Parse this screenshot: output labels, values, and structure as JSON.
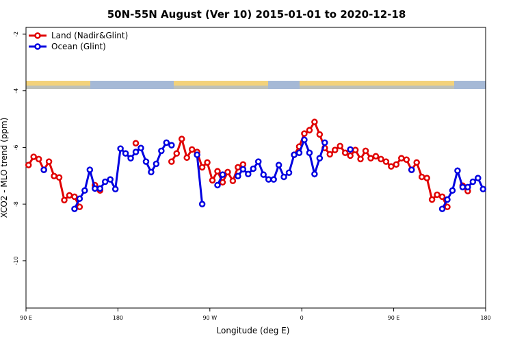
{
  "chart_data": {
    "type": "line",
    "title": "50N-55N August (Ver 10)   2015-01-01 to 2020-12-18",
    "x_label": "Longitude (deg E)",
    "y_label": "XCO2 - MLO trend (ppm)",
    "xlim": [
      90,
      540
    ],
    "xticks": [
      {
        "value": 90,
        "label": "90 E"
      },
      180,
      {
        "value": 270,
        "label": "90 W"
      },
      {
        "value": 360,
        "label": "0"
      },
      {
        "value": 450,
        "label": "90 E"
      },
      {
        "value": 540,
        "label": "180"
      }
    ],
    "ylim": [
      -1.76,
      -11.67
    ],
    "yticks": [
      -2,
      -4,
      -6,
      -8,
      -10
    ],
    "legend": "top-left",
    "series": [
      {
        "name": "Land (Nadir&Glint)",
        "color": "#e00000",
        "x": [
          92.5,
          97.5,
          102.5,
          107.5,
          112.5,
          117.5,
          122.5,
          127.5,
          132.5,
          137.5,
          142.5,
          147.5,
          157.5,
          162.5,
          167.5,
          197.5,
          202.5,
          232.5,
          237.5,
          242.5,
          247.5,
          252.5,
          257.5,
          262.5,
          267.5,
          272.5,
          277.5,
          282.5,
          287.5,
          292.5,
          297.5,
          302.5,
          307.5,
          352.5,
          357.5,
          362.5,
          367.5,
          372.5,
          377.5,
          382.5,
          387.5,
          392.5,
          397.5,
          402.5,
          407.5,
          412.5,
          417.5,
          422.5,
          427.5,
          432.5,
          437.5,
          442.5,
          447.5,
          452.5,
          457.5,
          462.5,
          467.5,
          472.5,
          477.5,
          482.5,
          487.5,
          492.5,
          497.5,
          502.5,
          507.5,
          517.5,
          522.5
        ],
        "values": [
          -6.62,
          -6.33,
          -6.41,
          -6.79,
          -6.5,
          -7.01,
          -7.06,
          -7.86,
          -7.69,
          -7.74,
          -8.1,
          null,
          -7.33,
          -7.52,
          null,
          -5.85,
          null,
          -6.5,
          -6.21,
          -5.7,
          -6.36,
          -6.07,
          -6.16,
          -6.7,
          -6.53,
          -7.16,
          -6.84,
          -7.23,
          -6.87,
          -7.18,
          -6.7,
          -6.6,
          null,
          -6.26,
          -5.97,
          -5.51,
          -5.39,
          -5.1,
          -5.54,
          -6.02,
          -6.24,
          -6.09,
          -5.95,
          -6.19,
          -6.29,
          -6.09,
          -6.41,
          -6.12,
          -6.38,
          -6.31,
          -6.41,
          -6.5,
          -6.67,
          -6.6,
          -6.38,
          -6.43,
          -6.79,
          -6.53,
          -7.04,
          -7.08,
          -7.84,
          -7.67,
          -7.74,
          -8.1,
          null,
          -7.35,
          -7.54
        ]
      },
      {
        "name": "Ocean (Glint)",
        "color": "#0000e0",
        "x": [
          107.5,
          112.5,
          137.5,
          142.5,
          147.5,
          152.5,
          157.5,
          162.5,
          167.5,
          172.5,
          177.5,
          182.5,
          187.5,
          192.5,
          197.5,
          202.5,
          207.5,
          212.5,
          217.5,
          222.5,
          227.5,
          232.5,
          242.5,
          257.5,
          262.5,
          267.5,
          277.5,
          282.5,
          287.5,
          297.5,
          302.5,
          307.5,
          312.5,
          317.5,
          322.5,
          327.5,
          332.5,
          337.5,
          342.5,
          347.5,
          352.5,
          357.5,
          362.5,
          367.5,
          372.5,
          377.5,
          382.5,
          387.5,
          407.5,
          412.5,
          467.5,
          472.5,
          497.5,
          502.5,
          507.5,
          512.5,
          517.5,
          522.5,
          527.5,
          532.5,
          537.5
        ],
        "values": [
          -6.79,
          null,
          -8.17,
          -7.81,
          -7.52,
          -6.79,
          -7.45,
          -7.45,
          -7.21,
          -7.13,
          -7.47,
          -6.04,
          -6.21,
          -6.38,
          -6.16,
          -6.02,
          -6.5,
          -6.87,
          -6.58,
          -6.12,
          -5.83,
          -5.92,
          null,
          -6.26,
          -8.0,
          null,
          -7.33,
          -6.96,
          null,
          -7.01,
          -6.77,
          -6.94,
          -6.75,
          -6.5,
          -6.96,
          -7.13,
          -7.13,
          -6.62,
          -7.04,
          -6.89,
          -6.26,
          -6.19,
          -5.73,
          -6.19,
          -6.94,
          -6.38,
          -5.83,
          null,
          -6.07,
          null,
          -6.79,
          null,
          -8.17,
          -7.84,
          -7.52,
          -6.82,
          -7.4,
          -7.4,
          -7.21,
          -7.08,
          -7.47
        ]
      }
    ]
  }
}
